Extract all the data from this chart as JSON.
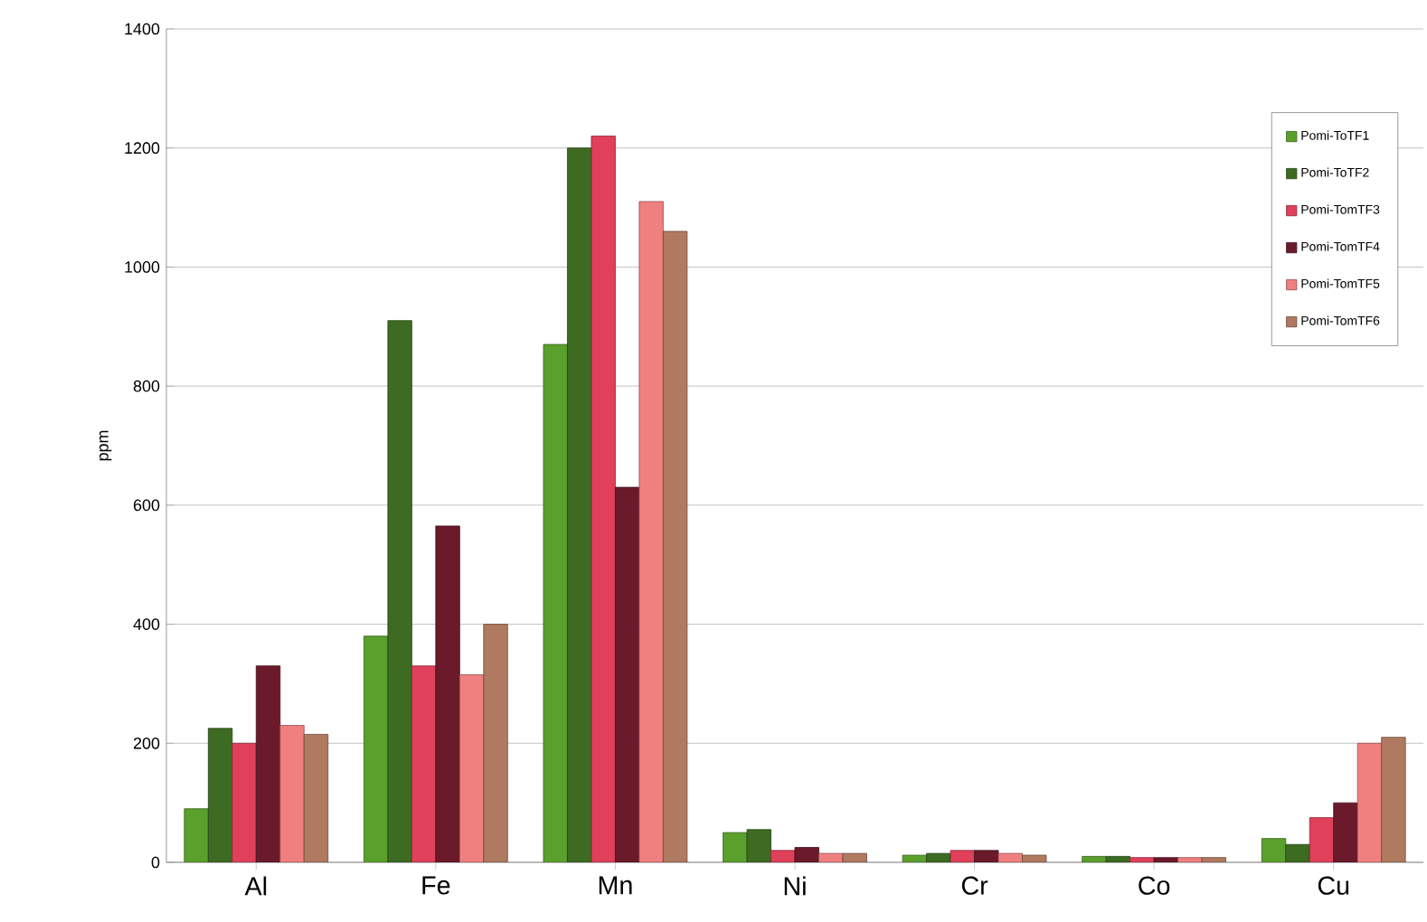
{
  "chart_data": {
    "type": "bar",
    "ylabel": "ppm",
    "categories": [
      "Al",
      "Fe",
      "Mn",
      "Ni",
      "Cr",
      "Co",
      "Cu"
    ],
    "series": [
      {
        "name": "Pomi-ToTF1",
        "color": "#5aa02c",
        "values": [
          90,
          380,
          870,
          50,
          12,
          10,
          40
        ]
      },
      {
        "name": "Pomi-ToTF2",
        "color": "#3d6b22",
        "values": [
          225,
          910,
          1200,
          55,
          15,
          10,
          30
        ]
      },
      {
        "name": "Pomi-TomTF3",
        "color": "#e0405a",
        "values": [
          200,
          330,
          1220,
          20,
          20,
          8,
          75
        ]
      },
      {
        "name": "Pomi-TomTF4",
        "color": "#6a1a2a",
        "values": [
          330,
          565,
          630,
          25,
          20,
          8,
          100
        ]
      },
      {
        "name": "Pomi-TomTF5",
        "color": "#f08080",
        "values": [
          230,
          315,
          1110,
          15,
          15,
          8,
          200
        ]
      },
      {
        "name": "Pomi-TomTF6",
        "color": "#b07a60",
        "values": [
          215,
          400,
          1060,
          15,
          12,
          8,
          210
        ]
      }
    ],
    "ylim": [
      0,
      1400
    ],
    "yticks": [
      0,
      200,
      400,
      600,
      800,
      1000,
      1200,
      1400
    ],
    "grid": "y",
    "legend": "right"
  }
}
